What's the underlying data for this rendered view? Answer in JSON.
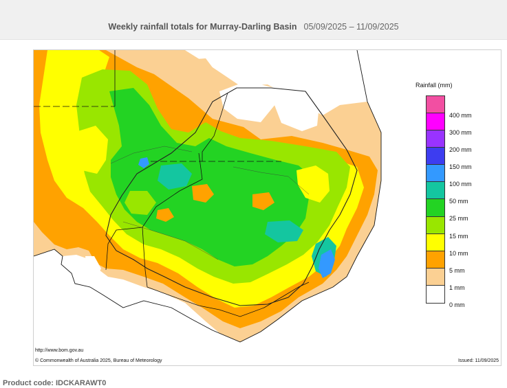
{
  "header": {
    "title": "Weekly rainfall totals for Murray-Darling Basin",
    "date_range": "05/09/2025 – 11/09/2025"
  },
  "legend": {
    "title": "Rainfall (mm)",
    "items": [
      {
        "label": "400 mm",
        "color": "#f24fa2"
      },
      {
        "label": "300 mm",
        "color": "#ff00ff"
      },
      {
        "label": "200 mm",
        "color": "#9933ff"
      },
      {
        "label": "150 mm",
        "color": "#3d3df0"
      },
      {
        "label": "100 mm",
        "color": "#3399ff"
      },
      {
        "label": "50 mm",
        "color": "#14c6a0"
      },
      {
        "label": "25 mm",
        "color": "#23d323"
      },
      {
        "label": "15 mm",
        "color": "#99e600"
      },
      {
        "label": "10 mm",
        "color": "#ffff00"
      },
      {
        "label": "5 mm",
        "color": "#ffa200"
      },
      {
        "label": "1 mm",
        "color": "#fbd093"
      },
      {
        "label": "0 mm",
        "color": "#ffffff"
      }
    ]
  },
  "map": {
    "source_url": "http://www.bom.gov.au",
    "copyright": "© Commonwealth of Australia 2025, Bureau of Meteorology",
    "issued": "Issued: 11/09/2025"
  },
  "footer": {
    "product_code": "Product code: IDCKARAWT0"
  }
}
